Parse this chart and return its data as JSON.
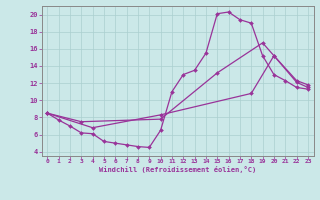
{
  "xlabel": "Windchill (Refroidissement éolien,°C)",
  "background_color": "#cbe8e8",
  "line_color": "#993399",
  "grid_color": "#aacfcf",
  "xlim": [
    -0.5,
    23.5
  ],
  "ylim": [
    3.5,
    21.0
  ],
  "xticks": [
    0,
    1,
    2,
    3,
    4,
    5,
    6,
    7,
    8,
    9,
    10,
    11,
    12,
    13,
    14,
    15,
    16,
    17,
    18,
    19,
    20,
    21,
    22,
    23
  ],
  "yticks": [
    4,
    6,
    8,
    10,
    12,
    14,
    16,
    18,
    20
  ],
  "series1": [
    [
      0,
      8.5
    ],
    [
      1,
      7.7
    ],
    [
      2,
      7.0
    ],
    [
      3,
      6.2
    ],
    [
      4,
      6.1
    ],
    [
      5,
      5.2
    ],
    [
      6,
      5.0
    ],
    [
      7,
      4.8
    ],
    [
      8,
      4.6
    ],
    [
      9,
      4.5
    ],
    [
      10,
      6.5
    ],
    [
      11,
      11.0
    ],
    [
      12,
      13.0
    ],
    [
      13,
      13.5
    ],
    [
      14,
      15.5
    ],
    [
      15,
      20.1
    ],
    [
      16,
      20.3
    ],
    [
      17,
      19.4
    ],
    [
      18,
      19.0
    ],
    [
      19,
      15.2
    ],
    [
      20,
      13.0
    ],
    [
      21,
      12.3
    ],
    [
      22,
      11.5
    ],
    [
      23,
      11.3
    ]
  ],
  "series2": [
    [
      0,
      8.5
    ],
    [
      3,
      7.5
    ],
    [
      10,
      7.8
    ],
    [
      15,
      13.2
    ],
    [
      19,
      16.7
    ],
    [
      20,
      15.2
    ],
    [
      22,
      12.3
    ],
    [
      23,
      11.8
    ]
  ],
  "series3": [
    [
      0,
      8.5
    ],
    [
      4,
      6.8
    ],
    [
      10,
      8.3
    ],
    [
      18,
      10.8
    ],
    [
      20,
      15.2
    ],
    [
      22,
      12.1
    ],
    [
      23,
      11.5
    ]
  ]
}
